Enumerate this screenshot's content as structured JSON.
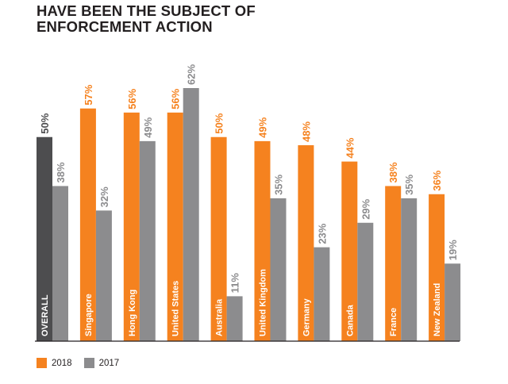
{
  "title_line1": "HAVE BEEN THE SUBJECT OF",
  "title_line2": "ENFORCEMENT ACTION",
  "colors": {
    "overall_2018": "#4d4d4f",
    "orange_2018": "#f5821f",
    "gray_2017": "#8c8c8e",
    "baseline": "#231f20"
  },
  "chart_data": {
    "type": "bar",
    "categories": [
      "OVERALL",
      "Singapore",
      "Hong Kong",
      "United States",
      "Australia",
      "United Kingdom",
      "Germany",
      "Canada",
      "France",
      "New Zealand"
    ],
    "series": [
      {
        "name": "2018",
        "values": [
          50,
          57,
          56,
          56,
          50,
          49,
          48,
          44,
          38,
          36
        ]
      },
      {
        "name": "2017",
        "values": [
          38,
          32,
          49,
          62,
          11,
          35,
          23,
          29,
          35,
          19
        ]
      }
    ],
    "value_suffix": "%",
    "ylim": [
      0,
      62
    ],
    "grid": false,
    "legend_position": "bottom-left",
    "legend": [
      {
        "label": "2018",
        "color": "#f5821f"
      },
      {
        "label": "2017",
        "color": "#8c8c8e"
      }
    ]
  }
}
